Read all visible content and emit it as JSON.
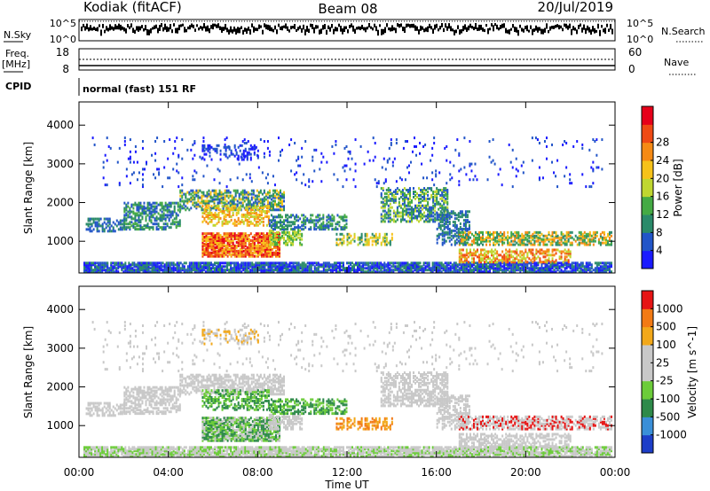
{
  "header": {
    "station": "Kodiak (fitACF)",
    "beam": "Beam 08",
    "date": "20/Jul/2019"
  },
  "sky_panel": {
    "left_label": "N.Sky",
    "right_label": "N.Search",
    "ticks_left": [
      "10^5",
      "10^0"
    ],
    "ticks_right": [
      "10^5",
      "10^0"
    ]
  },
  "freq_panel": {
    "left_label_1": "Freq.",
    "left_label_2": "[MHz]",
    "right_label": "Nave",
    "ticks_left": [
      "18",
      "8"
    ],
    "ticks_right": [
      "60",
      "0"
    ]
  },
  "cpid": {
    "label": "CPID",
    "value": "normal (fast) 151 RF"
  },
  "chart_data": [
    {
      "type": "heatmap",
      "name": "power",
      "ylabel": "Slant Range [km]",
      "xlabel": "Time UT",
      "y_ticks": [
        "1000",
        "2000",
        "3000",
        "4000"
      ],
      "x_ticks": [
        "00:00",
        "04:00",
        "08:00",
        "12:00",
        "16:00",
        "20:00",
        "00:00"
      ],
      "x_range_hours": [
        0,
        24
      ],
      "y_range_km": [
        180,
        4600
      ],
      "colorbar": {
        "label": "Power [dB]",
        "ticks": [
          "4",
          "8",
          "12",
          "16",
          "20",
          "24",
          "28"
        ],
        "colors": [
          "#1a1aff",
          "#2255c8",
          "#2a8a6a",
          "#44aa44",
          "#bfd630",
          "#f6c21a",
          "#f58a14",
          "#ef4a14",
          "#e6001a"
        ]
      }
    },
    {
      "type": "heatmap",
      "name": "velocity",
      "ylabel": "Slant Range [km]",
      "xlabel": "Time UT",
      "y_ticks": [
        "1000",
        "2000",
        "3000",
        "4000"
      ],
      "x_ticks": [
        "00:00",
        "04:00",
        "08:00",
        "12:00",
        "16:00",
        "20:00",
        "00:00"
      ],
      "x_range_hours": [
        0,
        24
      ],
      "y_range_km": [
        180,
        4600
      ],
      "colorbar": {
        "label": "Velocity [m s^-1]",
        "ticks": [
          "1000",
          "500",
          "100",
          "25",
          "-25",
          "-100",
          "-500",
          "-1000"
        ],
        "colors": [
          "#1d3ec8",
          "#3a8fd8",
          "#2e8a4a",
          "#6ccc3a",
          "#c8c8c8",
          "#c8c8c8",
          "#f2a81a",
          "#f27a14",
          "#e61414"
        ]
      }
    }
  ]
}
